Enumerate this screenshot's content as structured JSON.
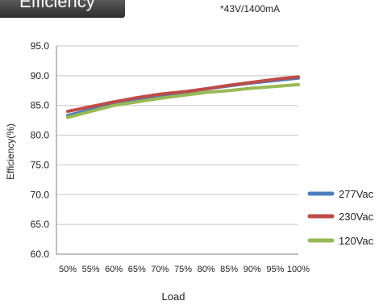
{
  "header": {
    "title": "Efficiency",
    "note": "*43V/1400mA"
  },
  "chart_data": {
    "type": "line",
    "title": "Efficiency",
    "xlabel": "Load",
    "ylabel": "Efficiency(%)",
    "ylim": [
      60,
      95
    ],
    "ytick_labels": [
      "95.0",
      "90.0",
      "85.0",
      "80.0",
      "75.0",
      "70.0",
      "65.0",
      "60.0"
    ],
    "categories": [
      "50%",
      "55%",
      "60%",
      "65%",
      "70%",
      "75%",
      "80%",
      "85%",
      "90%",
      "95%",
      "100%"
    ],
    "grid": true,
    "legend_position": "right",
    "series": [
      {
        "name": "277Vac",
        "color": "#4a7ebb",
        "values": [
          83.3,
          84.3,
          85.2,
          85.9,
          86.6,
          87.2,
          87.8,
          88.3,
          88.8,
          89.2,
          89.6
        ]
      },
      {
        "name": "230Vac",
        "color": "#be4b48",
        "values": [
          84.0,
          84.8,
          85.6,
          86.3,
          86.9,
          87.3,
          87.8,
          88.4,
          88.9,
          89.4,
          89.8
        ]
      },
      {
        "name": "120Vac",
        "color": "#98b954",
        "values": [
          83.0,
          84.0,
          85.0,
          85.6,
          86.2,
          86.7,
          87.2,
          87.5,
          87.9,
          88.2,
          88.5
        ]
      }
    ]
  }
}
